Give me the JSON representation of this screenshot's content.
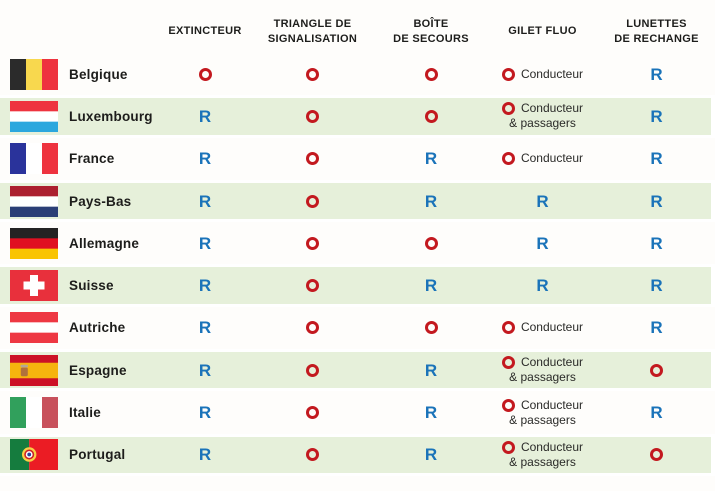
{
  "colors": {
    "obligatoire_symbol": "#c3191f",
    "recommande_symbol": "#1a73b9",
    "row_highlight": "#e6f0da",
    "header_text": "#1d1d1b"
  },
  "table": {
    "headers": [
      {
        "id": "country",
        "lines": []
      },
      {
        "id": "extincteur",
        "lines": [
          "EXTINCTEUR"
        ]
      },
      {
        "id": "triangle-signalisation",
        "lines": [
          "TRIANGLE DE",
          "SIGNALISATION"
        ]
      },
      {
        "id": "boite-de-secours",
        "lines": [
          "BOÎTE",
          "DE SECOURS"
        ]
      },
      {
        "id": "gilet-fluo",
        "lines": [
          "GILET FLUO"
        ]
      },
      {
        "id": "lunettes-de-rechange",
        "lines": [
          "LUNETTES",
          "DE RECHANGE"
        ]
      }
    ],
    "symbols": {
      "obligatoire": "O",
      "recommande": "R"
    },
    "rows": [
      {
        "country": "Belgique",
        "highlight": false,
        "flag": {
          "name": "belgium-flag",
          "layout": "v",
          "colors": [
            "#2b2b2b",
            "#f8d84e",
            "#ee333f"
          ]
        },
        "cells": [
          {
            "symbol": "O"
          },
          {
            "symbol": "O"
          },
          {
            "symbol": "O"
          },
          {
            "symbol": "O",
            "note_lines": [
              "Conducteur"
            ]
          },
          {
            "symbol": "R"
          }
        ]
      },
      {
        "country": "Luxembourg",
        "highlight": true,
        "flag": {
          "name": "luxembourg-flag",
          "layout": "h",
          "colors": [
            "#ee333f",
            "#ffffff",
            "#2ba7de"
          ]
        },
        "cells": [
          {
            "symbol": "R"
          },
          {
            "symbol": "O"
          },
          {
            "symbol": "O"
          },
          {
            "symbol": "O",
            "note_lines": [
              "Conducteur",
              "& passagers"
            ]
          },
          {
            "symbol": "R"
          }
        ]
      },
      {
        "country": "France",
        "highlight": false,
        "flag": {
          "name": "france-flag",
          "layout": "v",
          "colors": [
            "#2a339b",
            "#ffffff",
            "#ee333f"
          ]
        },
        "cells": [
          {
            "symbol": "R"
          },
          {
            "symbol": "O"
          },
          {
            "symbol": "R"
          },
          {
            "symbol": "O",
            "note_lines": [
              "Conducteur"
            ]
          },
          {
            "symbol": "R"
          }
        ]
      },
      {
        "country": "Pays-Bas",
        "highlight": true,
        "flag": {
          "name": "netherlands-flag",
          "layout": "h",
          "colors": [
            "#ac2030",
            "#ffffff",
            "#2b3f77"
          ]
        },
        "cells": [
          {
            "symbol": "R"
          },
          {
            "symbol": "O"
          },
          {
            "symbol": "R"
          },
          {
            "symbol": "R"
          },
          {
            "symbol": "R"
          }
        ]
      },
      {
        "country": "Allemagne",
        "highlight": false,
        "flag": {
          "name": "germany-flag",
          "layout": "h",
          "colors": [
            "#232323",
            "#e01021",
            "#f9c402"
          ]
        },
        "cells": [
          {
            "symbol": "R"
          },
          {
            "symbol": "O"
          },
          {
            "symbol": "O"
          },
          {
            "symbol": "R"
          },
          {
            "symbol": "R"
          }
        ]
      },
      {
        "country": "Suisse",
        "highlight": true,
        "flag": {
          "name": "switzerland-flag",
          "layout": "swiss",
          "colors": [
            "#e8303c",
            "#ffffff"
          ]
        },
        "cells": [
          {
            "symbol": "R"
          },
          {
            "symbol": "O"
          },
          {
            "symbol": "R"
          },
          {
            "symbol": "R"
          },
          {
            "symbol": "R"
          }
        ]
      },
      {
        "country": "Autriche",
        "highlight": false,
        "flag": {
          "name": "austria-flag",
          "layout": "h",
          "colors": [
            "#ee3843",
            "#ffffff",
            "#ee3843"
          ]
        },
        "cells": [
          {
            "symbol": "R"
          },
          {
            "symbol": "O"
          },
          {
            "symbol": "O"
          },
          {
            "symbol": "O",
            "note_lines": [
              "Conducteur"
            ]
          },
          {
            "symbol": "R"
          }
        ]
      },
      {
        "country": "Espagne",
        "highlight": true,
        "flag": {
          "name": "spain-flag",
          "layout": "spain",
          "colors": [
            "#cc1126",
            "#f6b40e"
          ]
        },
        "cells": [
          {
            "symbol": "R"
          },
          {
            "symbol": "O"
          },
          {
            "symbol": "R"
          },
          {
            "symbol": "O",
            "note_lines": [
              "Conducteur",
              "& passagers"
            ]
          },
          {
            "symbol": "O"
          }
        ]
      },
      {
        "country": "Italie",
        "highlight": false,
        "flag": {
          "name": "italy-flag",
          "layout": "v",
          "colors": [
            "#31a05c",
            "#ffffff",
            "#c8515c"
          ]
        },
        "cells": [
          {
            "symbol": "R"
          },
          {
            "symbol": "O"
          },
          {
            "symbol": "R"
          },
          {
            "symbol": "O",
            "note_lines": [
              "Conducteur",
              "& passagers"
            ]
          },
          {
            "symbol": "R"
          }
        ]
      },
      {
        "country": "Portugal",
        "highlight": true,
        "flag": {
          "name": "portugal-flag",
          "layout": "portugal",
          "colors": [
            "#157c3e",
            "#eb1c24"
          ]
        },
        "cells": [
          {
            "symbol": "R"
          },
          {
            "symbol": "O"
          },
          {
            "symbol": "R"
          },
          {
            "symbol": "O",
            "note_lines": [
              "Conducteur",
              "& passagers"
            ]
          },
          {
            "symbol": "O"
          }
        ]
      }
    ]
  }
}
